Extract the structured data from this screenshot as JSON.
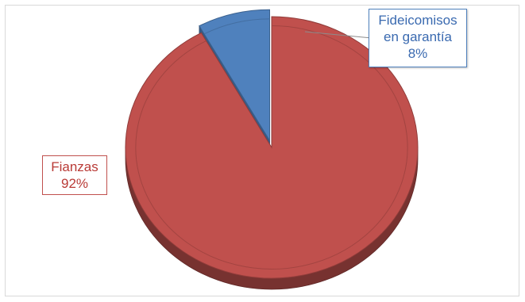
{
  "chart_data": {
    "type": "pie",
    "title": "",
    "labels": [
      "Fianzas",
      "Fideicomisos en garantía"
    ],
    "values": [
      92,
      8
    ],
    "colors": [
      "#c0504d",
      "#4f81bd"
    ],
    "exploded": [
      false,
      true
    ],
    "style": "3d",
    "data_labels": [
      {
        "lines": [
          "Fianzas",
          "92%"
        ]
      },
      {
        "lines": [
          "Fideicomisos",
          "en garantía",
          "8%"
        ]
      }
    ],
    "legend": "none"
  }
}
